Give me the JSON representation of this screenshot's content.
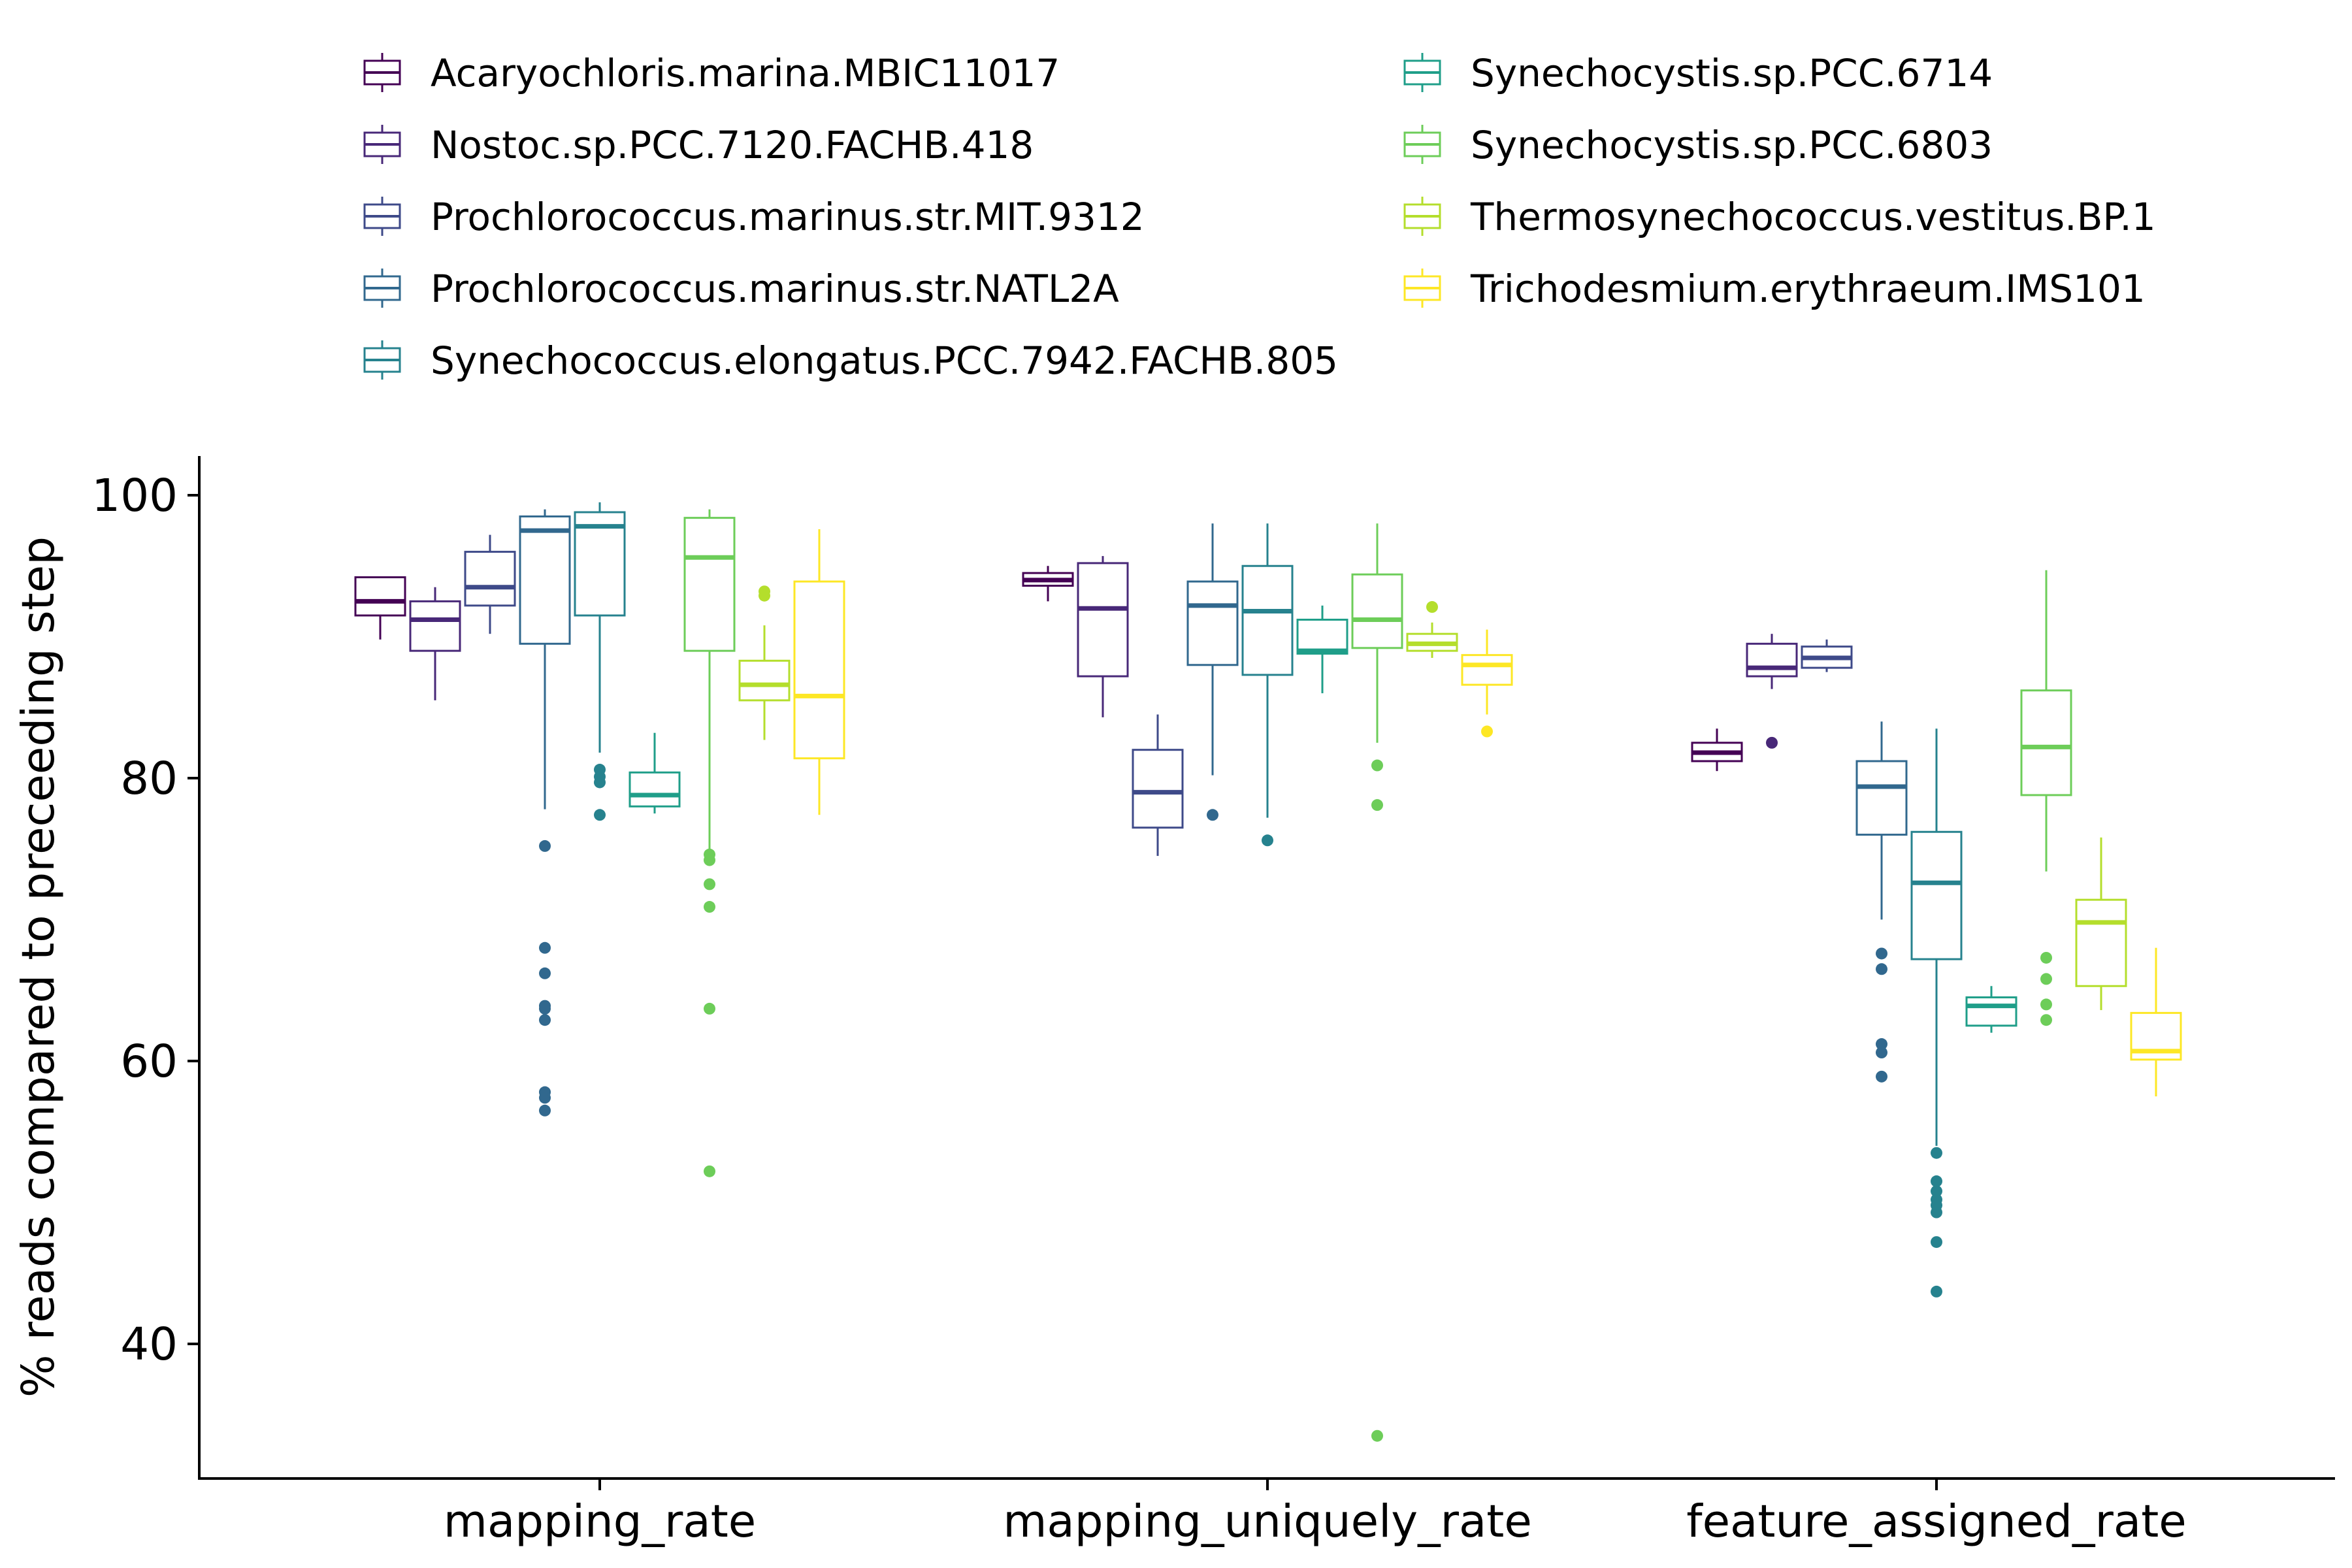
{
  "chart_data": {
    "type": "box",
    "title": "",
    "xlabel": "",
    "ylabel": "% reads compared to preceeding step",
    "ylim": [
      30,
      103
    ],
    "yticks": [
      40,
      60,
      80,
      100
    ],
    "grid": false,
    "legend_position": "top",
    "categories": [
      "mapping_rate",
      "mapping_uniquely_rate",
      "feature_assigned_rate"
    ],
    "series": [
      {
        "name": "Acaryochloris.marina.MBIC11017",
        "color": "#440154",
        "boxes": [
          {
            "min": 89.8,
            "q1": 91.5,
            "median": 92.5,
            "q3": 94.2,
            "max": 94.2,
            "outliers": []
          },
          {
            "min": 92.5,
            "q1": 93.6,
            "median": 94.0,
            "q3": 94.5,
            "max": 95.0,
            "outliers": []
          },
          {
            "min": 80.5,
            "q1": 81.2,
            "median": 81.8,
            "q3": 82.5,
            "max": 83.5,
            "outliers": []
          }
        ]
      },
      {
        "name": "Nostoc.sp.PCC.7120.FACHB.418",
        "color": "#482878",
        "boxes": [
          {
            "min": 85.5,
            "q1": 89.0,
            "median": 91.2,
            "q3": 92.5,
            "max": 93.5,
            "outliers": []
          },
          {
            "min": 84.3,
            "q1": 87.2,
            "median": 92.0,
            "q3": 95.2,
            "max": 95.7,
            "outliers": []
          },
          {
            "min": 86.3,
            "q1": 87.2,
            "median": 87.8,
            "q3": 89.5,
            "max": 90.2,
            "outliers": [
              82.5
            ]
          }
        ]
      },
      {
        "name": "Prochlorococcus.marinus.str.MIT.9312",
        "color": "#3E4A89",
        "boxes": [
          {
            "min": 90.2,
            "q1": 92.2,
            "median": 93.5,
            "q3": 96.0,
            "max": 97.2,
            "outliers": []
          },
          {
            "min": 74.5,
            "q1": 76.5,
            "median": 79.0,
            "q3": 82.0,
            "max": 84.5,
            "outliers": []
          },
          {
            "min": 87.5,
            "q1": 87.8,
            "median": 88.5,
            "q3": 89.3,
            "max": 89.8,
            "outliers": []
          }
        ]
      },
      {
        "name": "Prochlorococcus.marinus.str.NATL2A",
        "color": "#31688E",
        "boxes": [
          {
            "min": 77.8,
            "q1": 89.5,
            "median": 97.5,
            "q3": 98.5,
            "max": 99.0,
            "outliers": [
              75.2,
              68.0,
              66.2,
              63.9,
              63.7,
              62.9,
              57.8,
              57.4,
              56.5
            ]
          },
          {
            "min": 80.2,
            "q1": 88.0,
            "median": 92.2,
            "q3": 93.9,
            "max": 98.0,
            "outliers": [
              77.4
            ]
          },
          {
            "min": 70.0,
            "q1": 76.0,
            "median": 79.4,
            "q3": 81.2,
            "max": 84.0,
            "outliers": [
              67.6,
              66.5,
              61.2,
              60.6,
              58.9
            ]
          }
        ]
      },
      {
        "name": "Synechococcus.elongatus.PCC.7942.FACHB.805",
        "color": "#26828E",
        "boxes": [
          {
            "min": 81.8,
            "q1": 91.5,
            "median": 97.8,
            "q3": 98.8,
            "max": 99.5,
            "outliers": [
              80.6,
              80.1,
              79.7,
              77.4
            ]
          },
          {
            "min": 77.2,
            "q1": 87.3,
            "median": 91.8,
            "q3": 95.0,
            "max": 98.0,
            "outliers": [
              75.6
            ]
          },
          {
            "min": 54.0,
            "q1": 67.2,
            "median": 72.6,
            "q3": 76.2,
            "max": 83.5,
            "outliers": [
              53.5,
              51.5,
              50.8,
              50.2,
              49.8,
              49.3,
              47.2,
              43.7
            ]
          }
        ]
      },
      {
        "name": "Synechocystis.sp.PCC.6714",
        "color": "#1F9E89",
        "boxes": [
          {
            "min": 77.5,
            "q1": 78.0,
            "median": 78.8,
            "q3": 80.4,
            "max": 83.2,
            "outliers": []
          },
          {
            "min": 86.0,
            "q1": 88.8,
            "median": 89.0,
            "q3": 91.2,
            "max": 92.2,
            "outliers": []
          },
          {
            "min": 62.0,
            "q1": 62.5,
            "median": 63.9,
            "q3": 64.5,
            "max": 65.3,
            "outliers": []
          }
        ]
      },
      {
        "name": "Synechocystis.sp.PCC.6803",
        "color": "#6DCD59",
        "boxes": [
          {
            "min": 75.0,
            "q1": 89.0,
            "median": 95.6,
            "q3": 98.4,
            "max": 99.0,
            "outliers": [
              74.6,
              74.2,
              72.5,
              70.9,
              63.7,
              52.2
            ]
          },
          {
            "min": 82.5,
            "q1": 89.2,
            "median": 91.2,
            "q3": 94.4,
            "max": 98.0,
            "outliers": [
              80.9,
              78.1,
              33.5
            ]
          },
          {
            "min": 73.4,
            "q1": 78.8,
            "median": 82.2,
            "q3": 86.2,
            "max": 94.7,
            "outliers": [
              67.3,
              65.8,
              64.0,
              62.9
            ]
          }
        ]
      },
      {
        "name": "Thermosynechococcus.vestitus.BP.1",
        "color": "#B4DE2C",
        "boxes": [
          {
            "min": 82.7,
            "q1": 85.5,
            "median": 86.6,
            "q3": 88.3,
            "max": 90.8,
            "outliers": [
              93.2,
              92.9
            ]
          },
          {
            "min": 88.5,
            "q1": 89.0,
            "median": 89.5,
            "q3": 90.2,
            "max": 91.0,
            "outliers": [
              92.1
            ]
          },
          {
            "min": 63.6,
            "q1": 65.3,
            "median": 69.8,
            "q3": 71.4,
            "max": 75.8,
            "outliers": []
          }
        ]
      },
      {
        "name": "Trichodesmium.erythraeum.IMS101",
        "color": "#FDE725",
        "boxes": [
          {
            "min": 77.4,
            "q1": 81.4,
            "median": 85.8,
            "q3": 93.9,
            "max": 97.6,
            "outliers": []
          },
          {
            "min": 84.5,
            "q1": 86.6,
            "median": 88.0,
            "q3": 88.7,
            "max": 90.5,
            "outliers": [
              83.3
            ]
          },
          {
            "min": 57.5,
            "q1": 60.1,
            "median": 60.7,
            "q3": 63.4,
            "max": 68.0,
            "outliers": []
          }
        ]
      }
    ]
  }
}
